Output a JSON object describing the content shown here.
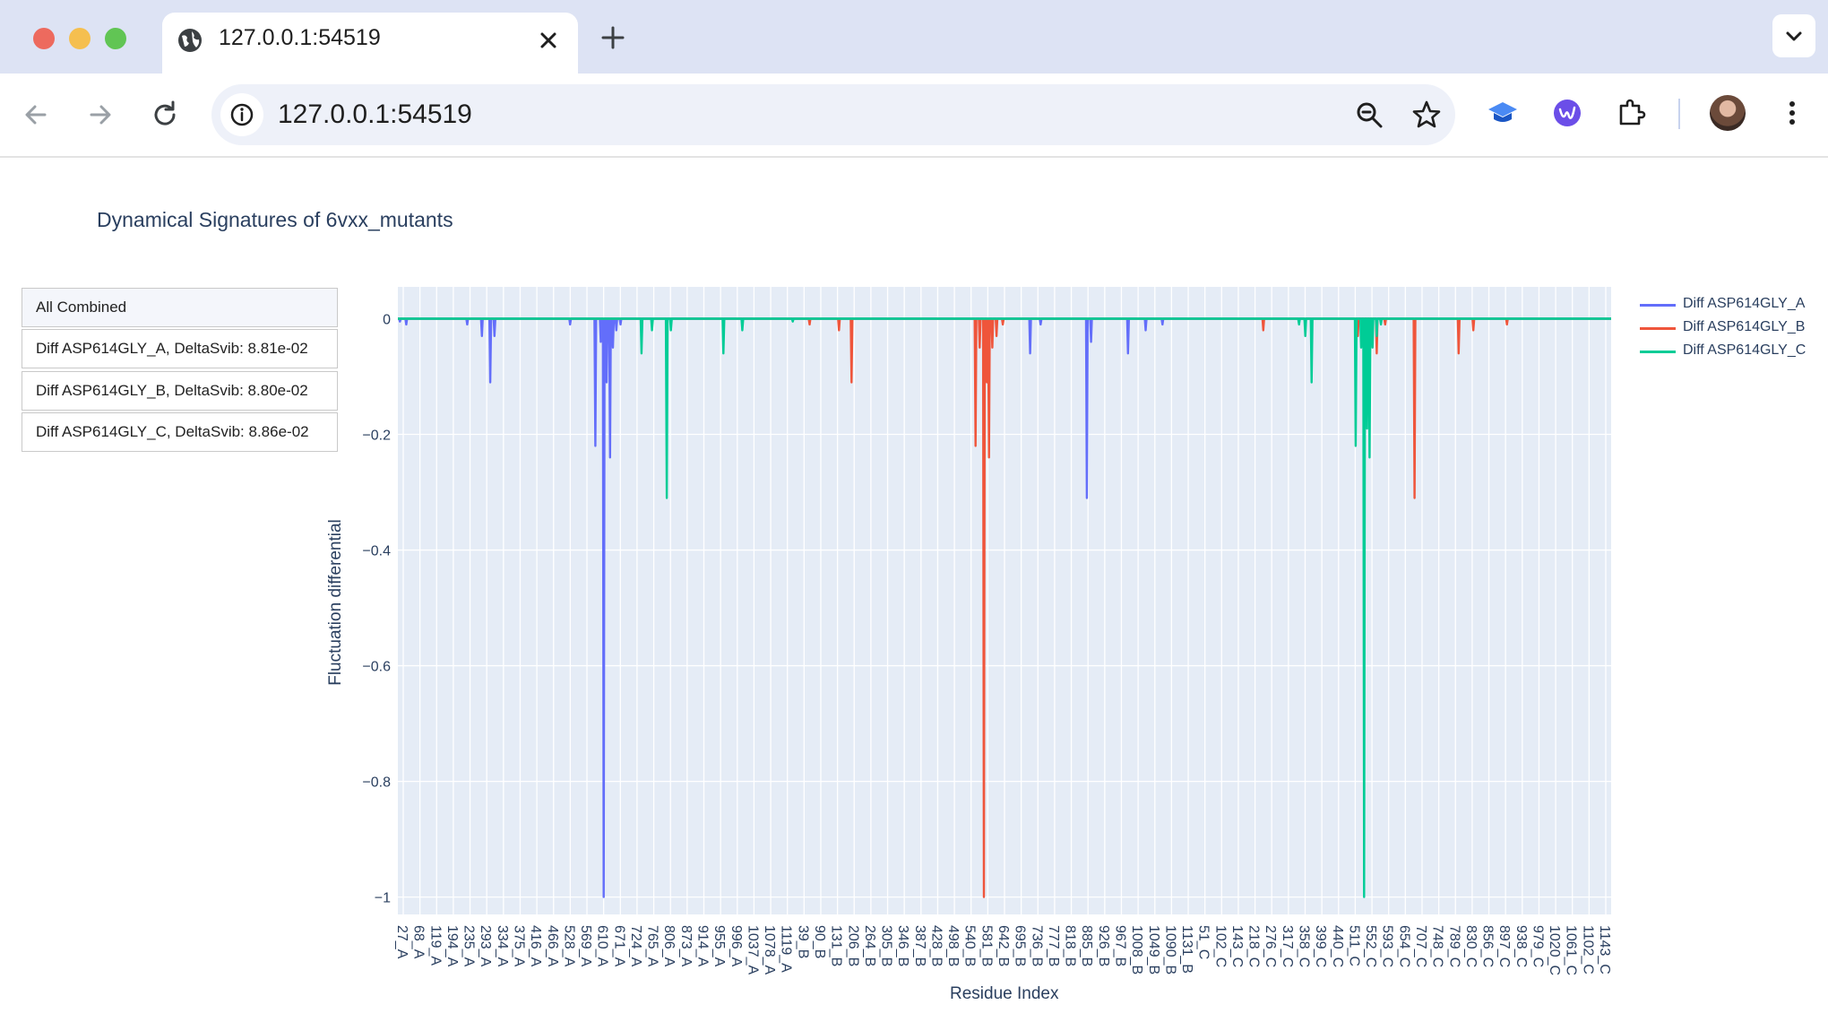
{
  "browser": {
    "tab_title": "127.0.0.1:54519",
    "url": "127.0.0.1:54519"
  },
  "page": {
    "title": "Dynamical Signatures of 6vxx_mutants"
  },
  "buttons": [
    {
      "label": "All Combined"
    },
    {
      "label": "Diff ASP614GLY_A, DeltaSvib: 8.81e-02"
    },
    {
      "label": "Diff ASP614GLY_B, DeltaSvib: 8.80e-02"
    },
    {
      "label": "Diff ASP614GLY_C, DeltaSvib: 8.86e-02"
    }
  ],
  "chart_data": {
    "type": "line",
    "xlabel": "Residue Index",
    "ylabel": "Fluctuation differential",
    "ylim": [
      -1.03,
      0.055
    ],
    "yticks": [
      0,
      -0.2,
      -0.4,
      -0.6,
      -0.8,
      -1
    ],
    "ytick_labels": [
      "0",
      "−0.2",
      "−0.4",
      "−0.6",
      "−0.8",
      "−1"
    ],
    "x_total_residues": 2889,
    "xticks": [
      "27_A",
      "68_A",
      "119_A",
      "194_A",
      "235_A",
      "293_A",
      "334_A",
      "375_A",
      "416_A",
      "466_A",
      "528_A",
      "569_A",
      "610_A",
      "671_A",
      "724_A",
      "765_A",
      "806_A",
      "873_A",
      "914_A",
      "955_A",
      "996_A",
      "1037_A",
      "1078_A",
      "1119_A",
      "39_B",
      "90_B",
      "131_B",
      "206_B",
      "264_B",
      "305_B",
      "346_B",
      "387_B",
      "428_B",
      "498_B",
      "540_B",
      "581_B",
      "642_B",
      "695_B",
      "736_B",
      "777_B",
      "818_B",
      "885_B",
      "926_B",
      "967_B",
      "1008_B",
      "1049_B",
      "1090_B",
      "1131_B",
      "51_C",
      "102_C",
      "143_C",
      "218_C",
      "276_C",
      "317_C",
      "358_C",
      "399_C",
      "440_C",
      "511_C",
      "552_C",
      "593_C",
      "654_C",
      "707_C",
      "748_C",
      "789_C",
      "830_C",
      "856_C",
      "897_C",
      "938_C",
      "979_C",
      "1020_C",
      "1061_C",
      "1102_C",
      "1143_C"
    ],
    "legend_position": "top-right",
    "grid": true,
    "series": [
      {
        "name": "Diff ASP614GLY_A",
        "color": "#636efa",
        "dips": [
          [
            5,
            -0.005
          ],
          [
            20,
            -0.01
          ],
          [
            165,
            -0.01
          ],
          [
            200,
            -0.03
          ],
          [
            220,
            -0.11
          ],
          [
            230,
            -0.03
          ],
          [
            410,
            -0.01
          ],
          [
            470,
            -0.22
          ],
          [
            483,
            -0.04
          ],
          [
            490,
            -1.0
          ],
          [
            497,
            -0.11
          ],
          [
            500,
            -0.04
          ],
          [
            505,
            -0.24
          ],
          [
            512,
            -0.05
          ],
          [
            520,
            -0.02
          ],
          [
            530,
            -0.01
          ],
          [
            1505,
            -0.06
          ],
          [
            1530,
            -0.01
          ],
          [
            1640,
            -0.31
          ],
          [
            1650,
            -0.04
          ],
          [
            1738,
            -0.06
          ],
          [
            1780,
            -0.02
          ],
          [
            1820,
            -0.01
          ]
        ]
      },
      {
        "name": "Diff ASP614GLY_B",
        "color": "#ef553b",
        "dips": [
          [
            980,
            -0.01
          ],
          [
            1050,
            -0.02
          ],
          [
            1080,
            -0.11
          ],
          [
            1375,
            -0.22
          ],
          [
            1385,
            -0.05
          ],
          [
            1395,
            -1.0
          ],
          [
            1402,
            -0.11
          ],
          [
            1407,
            -0.24
          ],
          [
            1415,
            -0.05
          ],
          [
            1425,
            -0.03
          ],
          [
            1440,
            -0.01
          ],
          [
            2060,
            -0.02
          ],
          [
            2160,
            -0.01
          ],
          [
            2285,
            -0.03
          ],
          [
            2330,
            -0.06
          ],
          [
            2350,
            -0.01
          ],
          [
            2420,
            -0.31
          ],
          [
            2525,
            -0.06
          ],
          [
            2560,
            -0.02
          ],
          [
            2640,
            -0.01
          ]
        ]
      },
      {
        "name": "Diff ASP614GLY_C",
        "color": "#00cc96",
        "dips": [
          [
            580,
            -0.06
          ],
          [
            605,
            -0.02
          ],
          [
            640,
            -0.31
          ],
          [
            650,
            -0.02
          ],
          [
            775,
            -0.06
          ],
          [
            820,
            -0.02
          ],
          [
            940,
            -0.005
          ],
          [
            2145,
            -0.01
          ],
          [
            2160,
            -0.03
          ],
          [
            2175,
            -0.11
          ],
          [
            2280,
            -0.22
          ],
          [
            2293,
            -0.05
          ],
          [
            2300,
            -1.0
          ],
          [
            2307,
            -0.19
          ],
          [
            2313,
            -0.24
          ],
          [
            2320,
            -0.05
          ],
          [
            2330,
            -0.03
          ],
          [
            2340,
            -0.01
          ]
        ]
      }
    ]
  }
}
